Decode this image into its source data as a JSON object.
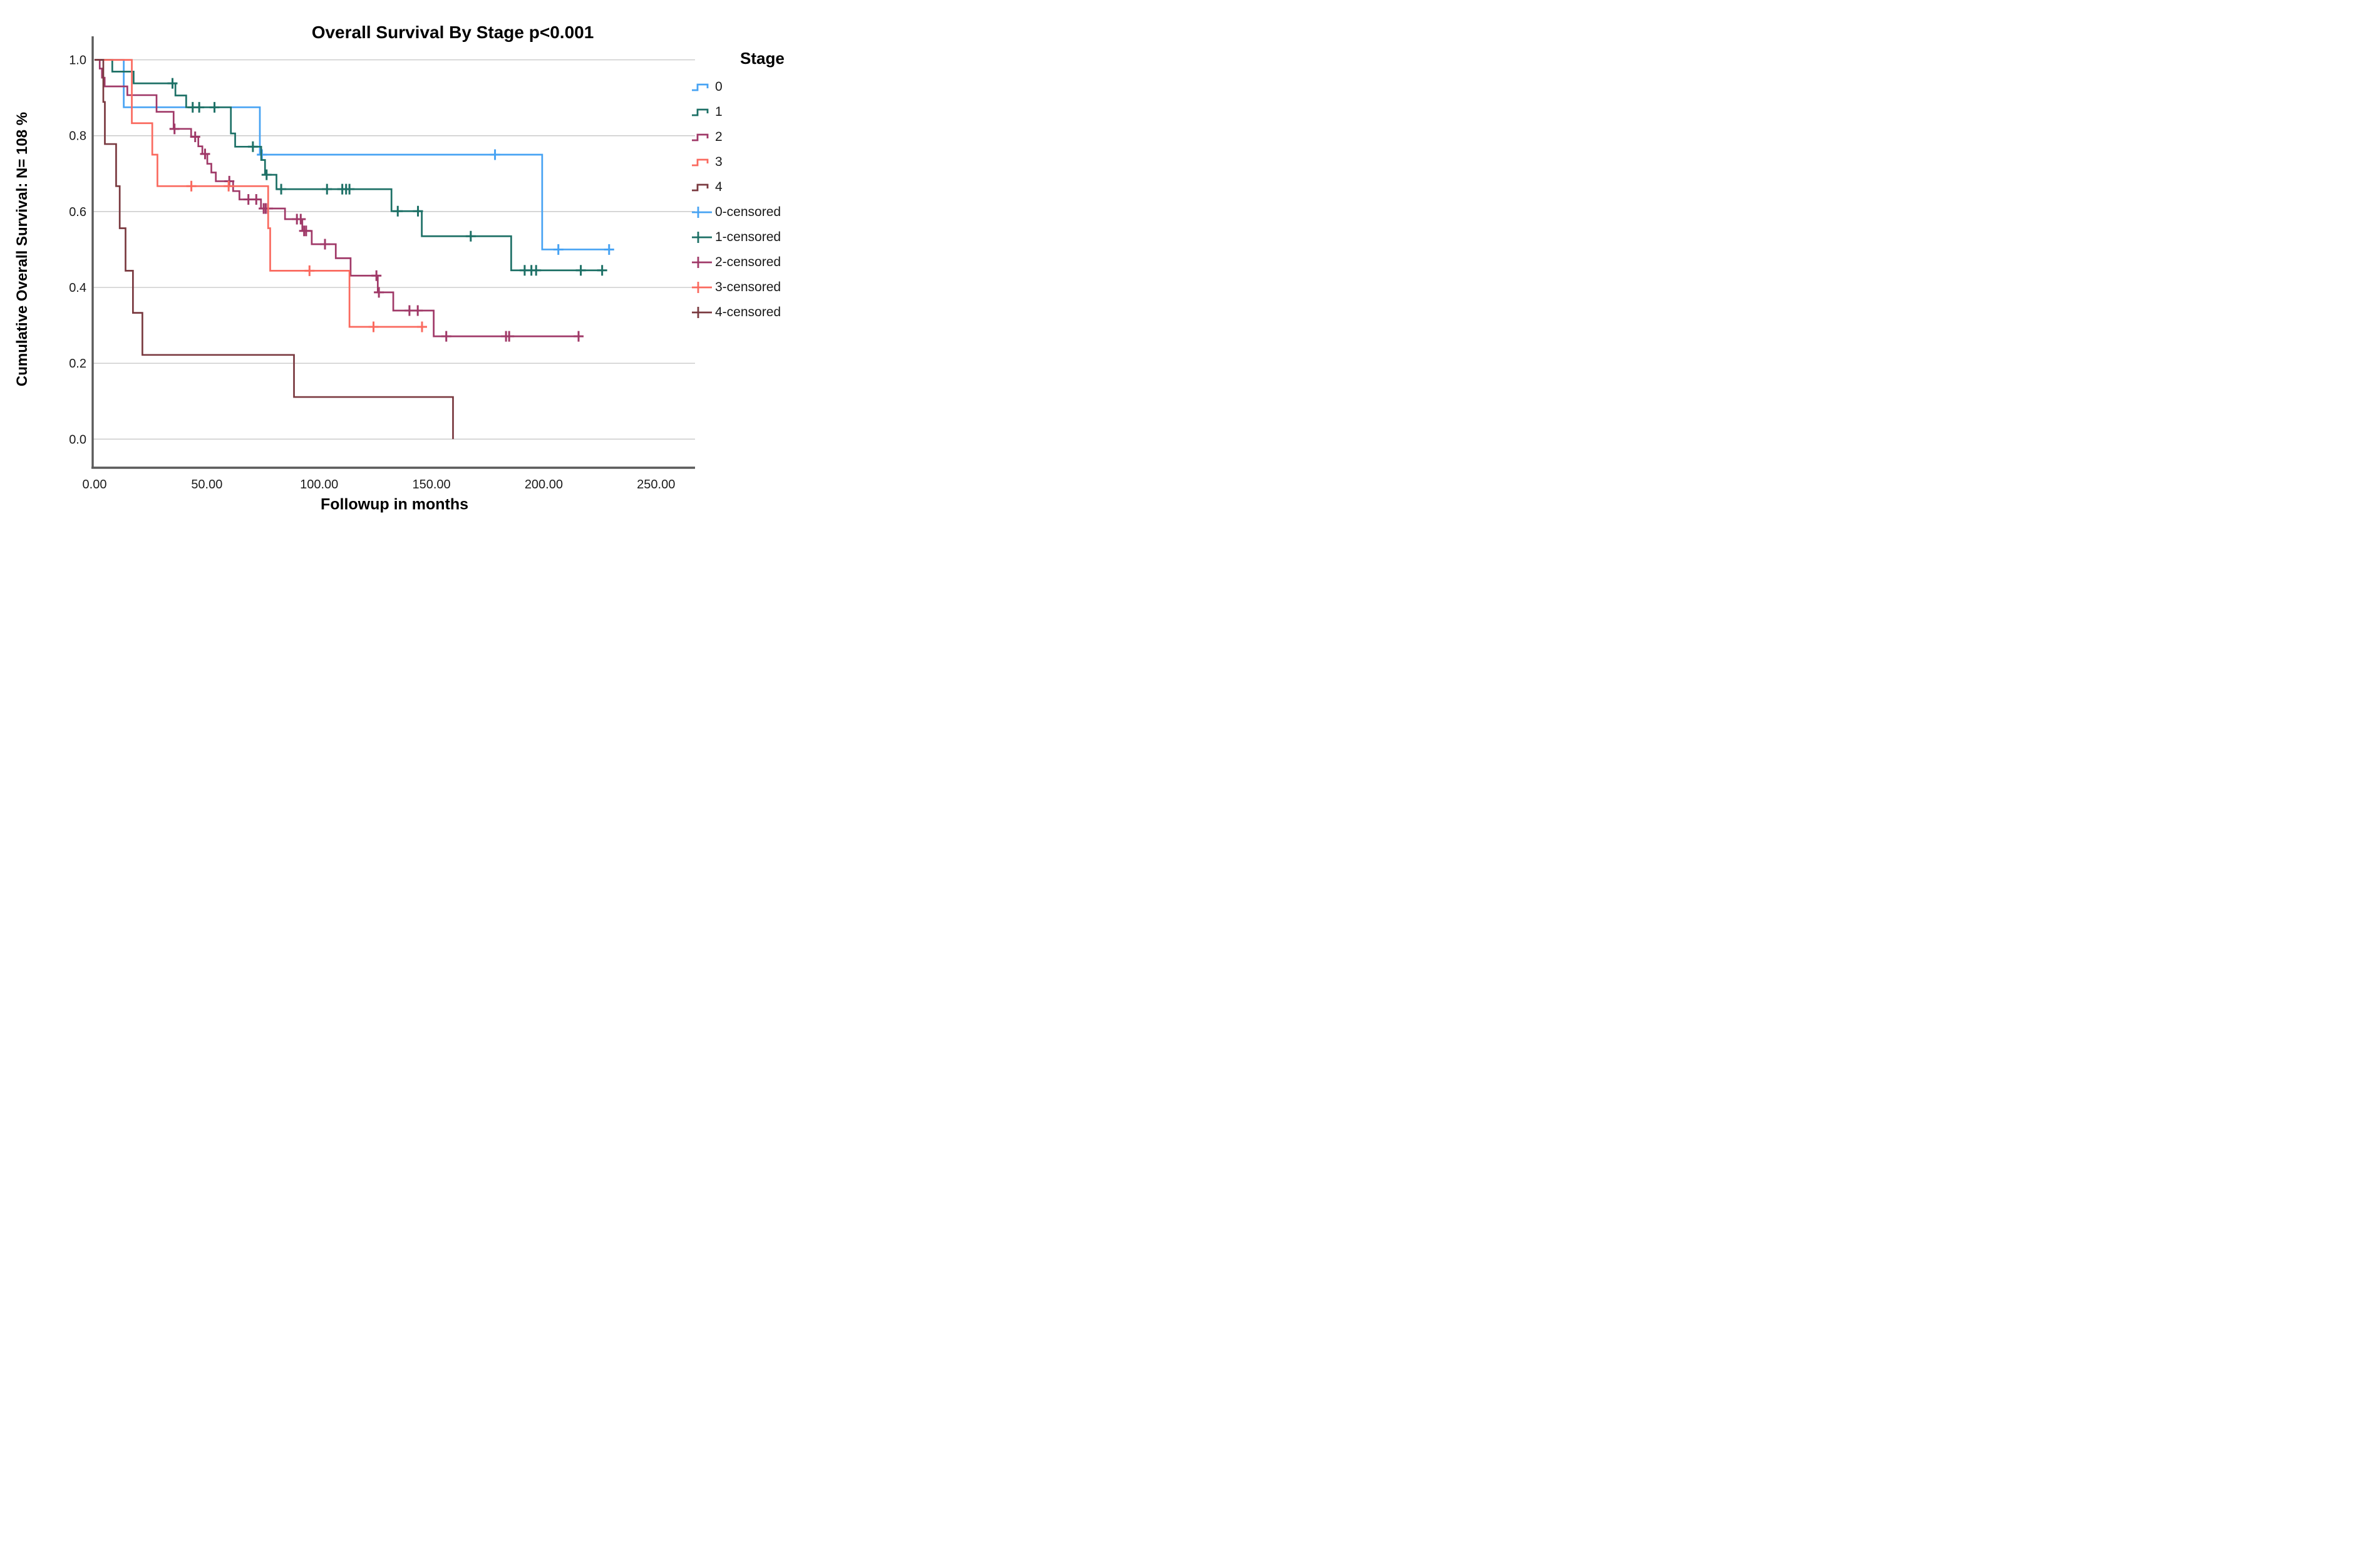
{
  "chart_data": {
    "type": "line",
    "subtype": "kaplan-meier-step",
    "title": "Overall Survival By Stage p<0.001",
    "xlabel": "Followup in months",
    "ylabel": "Cumulative Overall Survival: N= 108  %",
    "legend_title": "Stage",
    "grid": "horizontal-only",
    "legend_position": "right",
    "xlim": [
      0,
      265
    ],
    "ylim": [
      0,
      1.0
    ],
    "xticks": {
      "values": [
        0,
        50,
        100,
        150,
        200,
        250
      ],
      "labels": [
        "0.00",
        "50.00",
        "100.00",
        "150.00",
        "200.00",
        "250.00"
      ]
    },
    "yticks": {
      "values": [
        0,
        0.2,
        0.4,
        0.6,
        0.8,
        1.0
      ],
      "labels": [
        "0.0",
        "0.2",
        "0.4",
        "0.6",
        "0.8",
        "1.0"
      ]
    },
    "series": [
      {
        "name": "0",
        "color": "#47a3f3",
        "steps": [
          [
            0,
            1.0
          ],
          [
            13,
            0.875
          ],
          [
            73.6,
            0.75
          ],
          [
            199.3,
            0.5
          ]
        ],
        "end": 230,
        "censors": [
          [
            74.5,
            0.75
          ],
          [
            178.3,
            0.75
          ],
          [
            206.5,
            0.5
          ],
          [
            229.1,
            0.5
          ]
        ]
      },
      {
        "name": "1",
        "color": "#1d7066",
        "steps": [
          [
            0,
            1.0
          ],
          [
            7.9,
            0.969
          ],
          [
            17.4,
            0.938
          ],
          [
            36,
            0.906
          ],
          [
            40.8,
            0.875
          ],
          [
            60.7,
            0.806
          ],
          [
            62.6,
            0.771
          ],
          [
            74.2,
            0.736
          ],
          [
            75.9,
            0.697
          ],
          [
            81,
            0.659
          ],
          [
            132.2,
            0.601
          ],
          [
            145.7,
            0.535
          ],
          [
            185.5,
            0.445
          ]
        ],
        "end": 226.5,
        "censors": [
          [
            34.7,
            0.938
          ],
          [
            43.7,
            0.875
          ],
          [
            46.6,
            0.875
          ],
          [
            53.4,
            0.875
          ],
          [
            70.5,
            0.771
          ],
          [
            76.6,
            0.697
          ],
          [
            83.1,
            0.659
          ],
          [
            103.5,
            0.659
          ],
          [
            110.3,
            0.659
          ],
          [
            112,
            0.659
          ],
          [
            113.5,
            0.659
          ],
          [
            135,
            0.601
          ],
          [
            144,
            0.601
          ],
          [
            167.5,
            0.535
          ],
          [
            191.5,
            0.445
          ],
          [
            194.5,
            0.445
          ],
          [
            196.6,
            0.445
          ],
          [
            216.5,
            0.445
          ],
          [
            226,
            0.445
          ]
        ]
      },
      {
        "name": "2",
        "color": "#a03968",
        "steps": [
          [
            0,
            1.0
          ],
          [
            2.3,
            0.977
          ],
          [
            3.3,
            0.953
          ],
          [
            4.5,
            0.93
          ],
          [
            14.6,
            0.907
          ],
          [
            27.6,
            0.863
          ],
          [
            35.2,
            0.818
          ],
          [
            43,
            0.797
          ],
          [
            46.2,
            0.772
          ],
          [
            48,
            0.752
          ],
          [
            50.2,
            0.726
          ],
          [
            52,
            0.703
          ],
          [
            54,
            0.68
          ],
          [
            61.7,
            0.654
          ],
          [
            64.5,
            0.632
          ],
          [
            74.1,
            0.608
          ],
          [
            84.8,
            0.58
          ],
          [
            92.5,
            0.549
          ],
          [
            96.7,
            0.514
          ],
          [
            107.4,
            0.477
          ],
          [
            114,
            0.431
          ],
          [
            126.1,
            0.387
          ],
          [
            133,
            0.339
          ],
          [
            151,
            0.271
          ]
        ],
        "end": 217,
        "censors": [
          [
            35.6,
            0.818
          ],
          [
            44.8,
            0.797
          ],
          [
            49.2,
            0.752
          ],
          [
            60,
            0.68
          ],
          [
            68.5,
            0.632
          ],
          [
            72,
            0.632
          ],
          [
            75.3,
            0.608
          ],
          [
            76.2,
            0.608
          ],
          [
            77.2,
            0.608
          ],
          [
            90.1,
            0.58
          ],
          [
            91.8,
            0.58
          ],
          [
            93.3,
            0.549
          ],
          [
            94.2,
            0.549
          ],
          [
            102.6,
            0.514
          ],
          [
            125.5,
            0.431
          ],
          [
            126.6,
            0.387
          ],
          [
            140.2,
            0.339
          ],
          [
            143.9,
            0.339
          ],
          [
            156.6,
            0.271
          ],
          [
            183.2,
            0.271
          ],
          [
            184.6,
            0.271
          ],
          [
            215.5,
            0.271
          ]
        ]
      },
      {
        "name": "3",
        "color": "#fa6a5f",
        "steps": [
          [
            0,
            1.0
          ],
          [
            16.6,
            0.833
          ],
          [
            25.7,
            0.75
          ],
          [
            28,
            0.667
          ],
          [
            77.3,
            0.556
          ],
          [
            78.2,
            0.444
          ],
          [
            113.5,
            0.296
          ]
        ],
        "end": 147,
        "censors": [
          [
            43.1,
            0.667
          ],
          [
            59.7,
            0.667
          ],
          [
            95.7,
            0.444
          ],
          [
            124.2,
            0.296
          ],
          [
            145.8,
            0.296
          ]
        ]
      },
      {
        "name": "4",
        "color": "#7a3a40",
        "steps": [
          [
            0,
            1.0
          ],
          [
            3.9,
            0.889
          ],
          [
            4.6,
            0.778
          ],
          [
            9.6,
            0.667
          ],
          [
            11.2,
            0.556
          ],
          [
            13.8,
            0.444
          ],
          [
            17.1,
            0.333
          ],
          [
            21.3,
            0.222
          ],
          [
            88.8,
            0.111
          ],
          [
            159.6,
            0.0
          ]
        ],
        "end": 159.6,
        "censors": []
      }
    ],
    "legend_items": [
      {
        "label": "0",
        "color": "#47a3f3",
        "marker": "step"
      },
      {
        "label": "1",
        "color": "#1d7066",
        "marker": "step"
      },
      {
        "label": "2",
        "color": "#a03968",
        "marker": "step"
      },
      {
        "label": "3",
        "color": "#fa6a5f",
        "marker": "step"
      },
      {
        "label": "4",
        "color": "#7a3a40",
        "marker": "step"
      },
      {
        "label": "0-censored",
        "color": "#47a3f3",
        "marker": "plus"
      },
      {
        "label": "1-censored",
        "color": "#1d7066",
        "marker": "plus"
      },
      {
        "label": "2-censored",
        "color": "#a03968",
        "marker": "plus"
      },
      {
        "label": "3-censored",
        "color": "#fa6a5f",
        "marker": "plus"
      },
      {
        "label": "4-censored",
        "color": "#7a3a40",
        "marker": "plus"
      }
    ]
  }
}
